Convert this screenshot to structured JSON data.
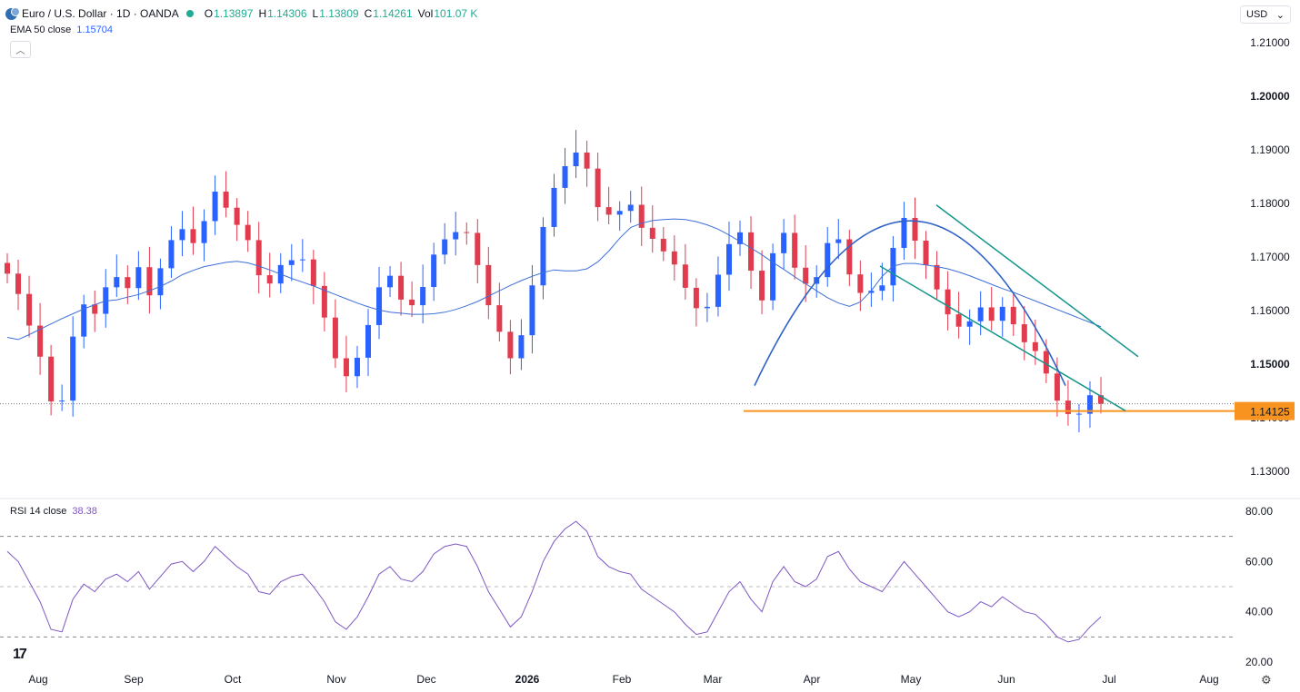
{
  "header": {
    "title": "Euro / U.S. Dollar · 1D · OANDA",
    "o_label": "O",
    "o_value": "1.13897",
    "h_label": "H",
    "h_value": "1.14306",
    "l_label": "L",
    "l_value": "1.13809",
    "c_label": "C",
    "c_value": "1.14261",
    "vol_label": "Vol",
    "vol_value": "101.07 K",
    "symbol_icon": "euro-dollar-icon"
  },
  "ema": {
    "label": "EMA 50 close",
    "value": "1.15704"
  },
  "rsi": {
    "label": "RSI 14 close",
    "value": "38.38"
  },
  "currency_select": {
    "value": "USD",
    "icon": "chevron-down-icon"
  },
  "logo": "17",
  "colors": {
    "up": "#2962ff",
    "down": "#e03c4e",
    "ema": "#3d6fd8",
    "rsi": "#7e57c2",
    "trendline": "#12958a",
    "arc": "#2f62c8",
    "support": "#f7931e",
    "price_tag": "#f7931e"
  },
  "chart_data": [
    {
      "type": "candlestick",
      "title": "Euro / U.S. Dollar · 1D · OANDA",
      "x_ticks": [
        "Aug",
        "Sep",
        "Oct",
        "Nov",
        "Dec",
        "2026",
        "Feb",
        "Mar",
        "Apr",
        "May",
        "Jun",
        "Jul",
        "Aug"
      ],
      "y_ticks": [
        "1.21000",
        "1.20000",
        "1.19000",
        "1.18000",
        "1.17000",
        "1.16000",
        "1.15000",
        "1.14000",
        "1.13000"
      ],
      "ylim": [
        1.1245,
        1.2145
      ],
      "last_price": 1.14261,
      "support_level": 1.14125,
      "support_label": "1.14125",
      "series": [
        {
          "name": "EMA 50 close",
          "values": [
            1.155,
            1.1546,
            1.1555,
            1.1565,
            1.1575,
            1.1585,
            1.1594,
            1.1603,
            1.1611,
            1.1618,
            1.162,
            1.1625,
            1.163,
            1.1637,
            1.1645,
            1.1655,
            1.1667,
            1.1675,
            1.1682,
            1.1686,
            1.169,
            1.1692,
            1.1689,
            1.1683,
            1.1676,
            1.1668,
            1.166,
            1.1653,
            1.1646,
            1.1638,
            1.163,
            1.1622,
            1.1614,
            1.1607,
            1.1601,
            1.1597,
            1.1595,
            1.1593,
            1.1593,
            1.1594,
            1.1597,
            1.1602,
            1.1609,
            1.1617,
            1.1627,
            1.1637,
            1.1647,
            1.1656,
            1.1664,
            1.1671,
            1.1676,
            1.1674,
            1.1674,
            1.1678,
            1.1691,
            1.1711,
            1.1735,
            1.1755,
            1.1763,
            1.1768,
            1.177,
            1.1771,
            1.177,
            1.1766,
            1.176,
            1.1752,
            1.1741,
            1.1729,
            1.1717,
            1.1704,
            1.169,
            1.1677,
            1.1663,
            1.165,
            1.1637,
            1.1624,
            1.1614,
            1.1608,
            1.1616,
            1.1637,
            1.1664,
            1.1683,
            1.1688,
            1.1688,
            1.1685,
            1.1682,
            1.1678,
            1.1672,
            1.1665,
            1.1657,
            1.1649,
            1.1641,
            1.1634,
            1.1626,
            1.1618,
            1.161,
            1.1602,
            1.1594,
            1.1586,
            1.1578,
            1.157
          ]
        }
      ]
    },
    {
      "type": "line",
      "title": "RSI 14 close",
      "y_ticks": [
        "80.00",
        "60.00",
        "40.00",
        "20.00"
      ],
      "ylim": [
        20,
        80
      ],
      "bands": [
        30,
        50,
        70
      ],
      "series": [
        {
          "name": "RSI 14 close",
          "values": [
            64,
            60,
            52,
            44,
            33,
            32,
            45,
            51,
            48,
            53,
            55,
            52,
            56,
            49,
            54,
            59,
            60,
            56,
            60,
            66,
            62,
            58,
            55,
            48,
            47,
            52,
            54,
            55,
            50,
            44,
            36,
            33,
            38,
            46,
            55,
            58,
            53,
            52,
            56,
            63,
            66,
            67,
            66,
            58,
            48,
            41,
            34,
            38,
            48,
            60,
            68,
            73,
            76,
            72,
            62,
            58,
            56,
            55,
            49,
            46,
            43,
            40,
            35,
            31,
            32,
            40,
            48,
            52,
            45,
            40,
            52,
            58,
            52,
            50,
            53,
            62,
            64,
            57,
            52,
            50,
            48,
            54,
            60,
            55,
            50,
            45,
            40,
            38,
            40,
            44,
            42,
            46,
            43,
            40,
            39,
            35,
            30,
            28,
            29,
            34,
            38
          ]
        }
      ]
    }
  ]
}
